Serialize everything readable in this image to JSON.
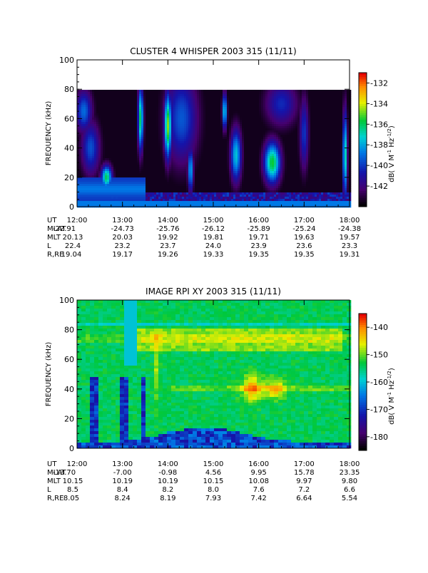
{
  "chart_data": [
    {
      "type": "heatmap",
      "title": "CLUSTER 4 WHISPER 2003 315 (11/11)",
      "ylabel": "FREQUENCY (kHz)",
      "ylim": [
        0,
        100
      ],
      "yticks": [
        "0",
        "20",
        "40",
        "60",
        "80",
        "100"
      ],
      "xlim": [
        "12:00",
        "18:00"
      ],
      "data_ceiling_khz": 80,
      "colorbar": {
        "label_parts": [
          "dB( V M",
          "-1",
          " Hz",
          "-1/2",
          ")"
        ],
        "range": [
          -144,
          -131
        ],
        "ticks": [
          "-132",
          "-134",
          "-136",
          "-138",
          "-140",
          "-142"
        ],
        "colormap": "rainbow"
      },
      "ephemeris": {
        "row_labels": [
          "UT",
          "MLAT",
          "MLT",
          "L",
          "R,RE"
        ],
        "times": [
          "12:00",
          "13:00",
          "14:00",
          "15:00",
          "16:00",
          "17:00",
          "18:00"
        ],
        "mlat": [
          "-22.91",
          "-24.73",
          "-25.76",
          "-26.12",
          "-25.89",
          "-25.24",
          "-24.38"
        ],
        "mlt": [
          "20.13",
          "20.03",
          "19.92",
          "19.81",
          "19.71",
          "19.63",
          "19.57"
        ],
        "l": [
          "22.4",
          "23.2",
          "23.7",
          "24.0",
          "23.9",
          "23.6",
          "23.3"
        ],
        "re": [
          "19.04",
          "19.17",
          "19.26",
          "19.33",
          "19.35",
          "19.35",
          "19.31"
        ]
      }
    },
    {
      "type": "heatmap",
      "title": "IMAGE RPI XY 2003 315 (11/11)",
      "ylabel": "FREQUENCY (kHz)",
      "ylim": [
        0,
        100
      ],
      "yticks": [
        "0",
        "20",
        "40",
        "60",
        "80",
        "100"
      ],
      "xlim": [
        "12:00",
        "18:00"
      ],
      "colorbar": {
        "label_parts": [
          "dB( V M",
          "-1",
          " Hz",
          "-1/2",
          ")"
        ],
        "range": [
          -185,
          -135
        ],
        "ticks": [
          "-140",
          "-150",
          "-160",
          "-170",
          "-180"
        ],
        "colormap": "rainbow"
      },
      "ephemeris": {
        "row_labels": [
          "UT",
          "MLAT",
          "MLT",
          "L",
          "R,RE"
        ],
        "times": [
          "12:00",
          "13:00",
          "14:00",
          "15:00",
          "16:00",
          "17:00",
          "18:00"
        ],
        "mlat": [
          "-13.70",
          "-7.00",
          "-0.98",
          "4.56",
          "9.95",
          "15.78",
          "23.35"
        ],
        "mlt": [
          "10.15",
          "10.19",
          "10.19",
          "10.15",
          "10.08",
          "9.97",
          "9.80"
        ],
        "l": [
          "8.5",
          "8.4",
          "8.2",
          "8.0",
          "7.6",
          "7.2",
          "6.6"
        ],
        "re": [
          "8.05",
          "8.24",
          "8.19",
          "7.93",
          "7.42",
          "6.64",
          "5.54"
        ]
      }
    }
  ]
}
